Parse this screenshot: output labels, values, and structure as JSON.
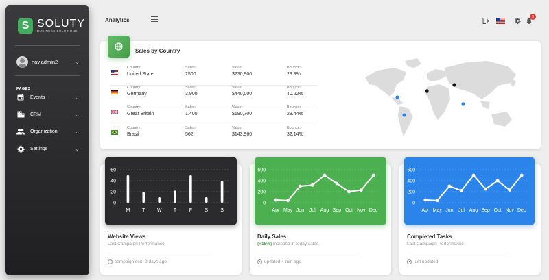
{
  "sidebar": {
    "brand_initial": "S",
    "brand_name": "SOLUTY",
    "brand_sub": "BUSINESS SOLUTIONS",
    "user_name": "nav.admin2",
    "pages_label": "PAGES",
    "items": [
      {
        "label": "Events",
        "icon": "calendar-icon"
      },
      {
        "label": "CRM",
        "icon": "building-icon"
      },
      {
        "label": "Organization",
        "icon": "people-icon"
      },
      {
        "label": "Settings",
        "icon": "gear-icon"
      }
    ]
  },
  "topbar": {
    "title": "Analytics",
    "notification_count": "9",
    "icons": [
      "logout-icon",
      "us-flag-icon",
      "gear-icon",
      "bell-icon"
    ]
  },
  "sales": {
    "title": "Sales by Country",
    "headers": {
      "country": "Country:",
      "sales": "Sales:",
      "value": "Value:",
      "bounce": "Bounce:"
    },
    "rows": [
      {
        "flag": "us",
        "country": "United State",
        "sales": "2500",
        "value": "$230,900",
        "bounce": "29.9%"
      },
      {
        "flag": "de",
        "country": "Germany",
        "sales": "3.900",
        "value": "$440,000",
        "bounce": "40.22%"
      },
      {
        "flag": "gb",
        "country": "Great Britain",
        "sales": "1.400",
        "value": "$190,700",
        "bounce": "23.44%"
      },
      {
        "flag": "br",
        "country": "Brasil",
        "sales": "562",
        "value": "$143,960",
        "bounce": "32.14%"
      }
    ]
  },
  "chart_data": [
    {
      "type": "bar",
      "categories": [
        "M",
        "T",
        "W",
        "T",
        "F",
        "S",
        "S"
      ],
      "values": [
        50,
        20,
        10,
        22,
        50,
        10,
        40
      ],
      "ylim": [
        0,
        60
      ],
      "yticks": [
        "60",
        "40",
        "20",
        "0"
      ],
      "title": "Website Views",
      "subtitle": "Last Campaign Performance",
      "footer": "campaign sent 2 days ago",
      "color": "#ffffff",
      "header_bg": "#2b2b2d"
    },
    {
      "type": "line",
      "categories": [
        "Apr",
        "May",
        "Jun",
        "Jul",
        "Aug",
        "Sep",
        "Oct",
        "Nov",
        "Dec"
      ],
      "values": [
        50,
        40,
        300,
        320,
        500,
        350,
        200,
        230,
        500
      ],
      "ylim": [
        0,
        600
      ],
      "yticks": [
        "600",
        "400",
        "200",
        "0"
      ],
      "title": "Daily Sales",
      "subtitle_bold": "(+15%)",
      "subtitle": " increase in today sales.",
      "footer": "updated 4 min ago",
      "color": "#ffffff",
      "header_bg": "#4caf50"
    },
    {
      "type": "line",
      "categories": [
        "Apr",
        "May",
        "Jun",
        "Jul",
        "Aug",
        "Sep",
        "Oct",
        "Nov",
        "Dec"
      ],
      "values": [
        50,
        40,
        300,
        220,
        500,
        250,
        400,
        230,
        500
      ],
      "ylim": [
        0,
        600
      ],
      "yticks": [
        "600",
        "400",
        "200",
        "0"
      ],
      "title": "Completed Tasks",
      "subtitle": "Last Campaign Performance",
      "footer": "just updated",
      "color": "#ffffff",
      "header_bg": "#2b84ea"
    }
  ]
}
